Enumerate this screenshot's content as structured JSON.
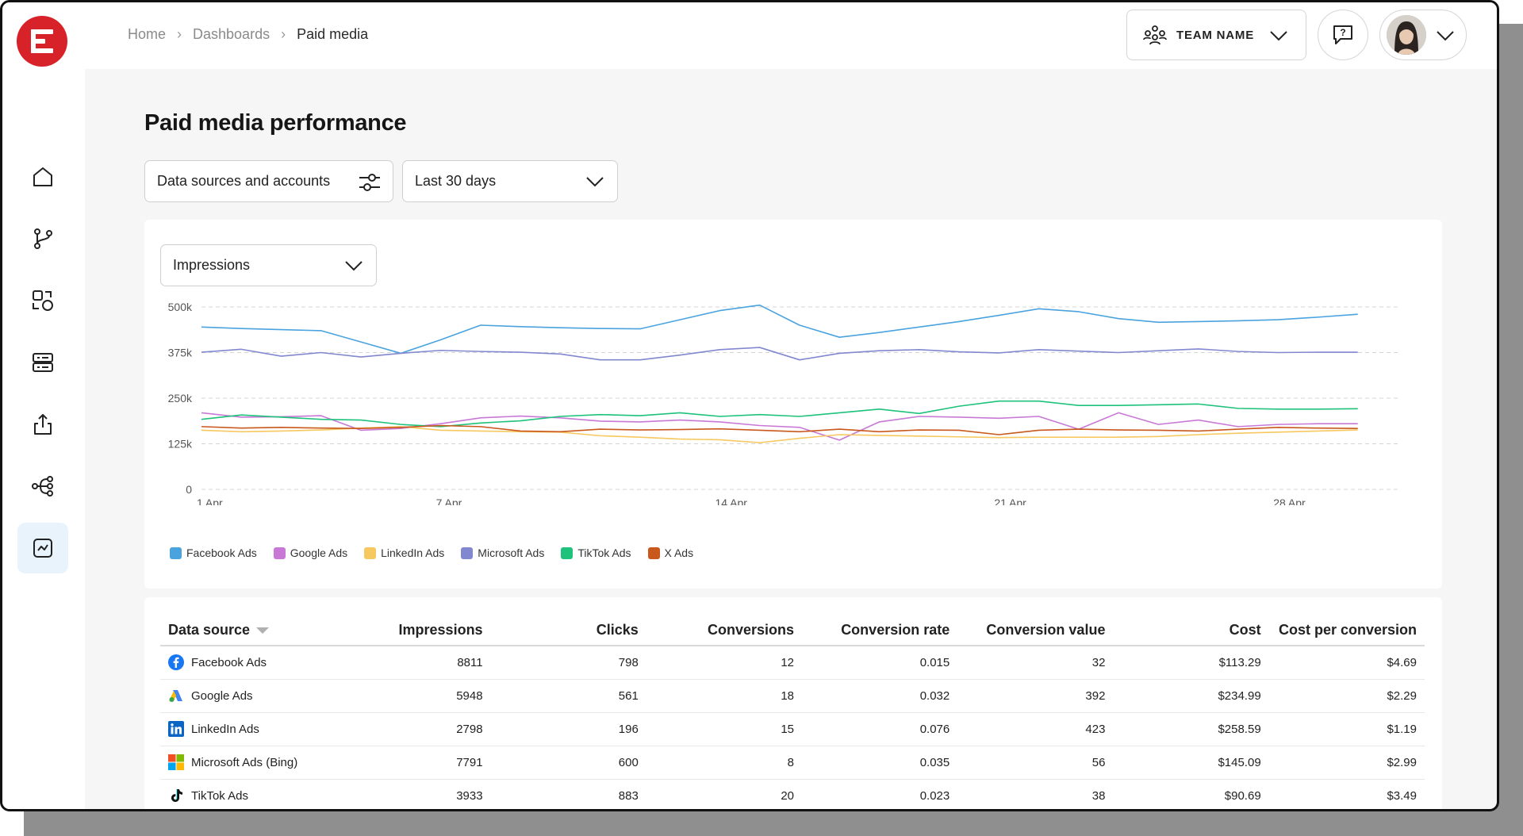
{
  "breadcrumb": {
    "home": "Home",
    "dashboards": "Dashboards",
    "current": "Paid media"
  },
  "header": {
    "team_name": "TEAM NAME"
  },
  "page": {
    "title": "Paid media performance"
  },
  "filters": {
    "sources_label": "Data sources and accounts",
    "date_range": "Last 30 days"
  },
  "chart": {
    "metric": "Impressions"
  },
  "colors": {
    "brand": "#d8222a",
    "active_nav_bg": "#e8f3fb"
  },
  "sidebar": {
    "items": [
      {
        "icon": "home-icon"
      },
      {
        "icon": "branch-icon"
      },
      {
        "icon": "shapes-icon"
      },
      {
        "icon": "server-icon"
      },
      {
        "icon": "upload-icon"
      },
      {
        "icon": "flow-icon"
      },
      {
        "icon": "analytics-icon",
        "active": true
      }
    ]
  },
  "chart_data": {
    "type": "line",
    "ylim": [
      0,
      500000
    ],
    "yticks": [
      "0",
      "125k",
      "250k",
      "375k",
      "500k"
    ],
    "xtick_labels": [
      "1 Apr",
      "7 Apr",
      "14 Apr",
      "21 Apr",
      "28 Apr"
    ],
    "xtick_days": [
      1,
      7,
      14,
      21,
      28
    ],
    "x": [
      1,
      2,
      3,
      4,
      5,
      6,
      7,
      8,
      9,
      10,
      11,
      12,
      13,
      14,
      15,
      16,
      17,
      18,
      19,
      20,
      21,
      22,
      23,
      24,
      25,
      26,
      27,
      28,
      29,
      30
    ],
    "grid": true,
    "legend_position": "bottom-left",
    "series": [
      {
        "name": "Facebook Ads",
        "color": "#4aa3df",
        "values": [
          445000,
          441000,
          438000,
          435000,
          404000,
          373000,
          410000,
          450000,
          446000,
          443000,
          441000,
          440000,
          465000,
          490000,
          505000,
          450000,
          417000,
          430000,
          445000,
          460000,
          477000,
          495000,
          487000,
          468000,
          458000,
          460000,
          462000,
          465000,
          472000,
          480000
        ]
      },
      {
        "name": "Google Ads",
        "color": "#c879d6",
        "values": [
          210000,
          198000,
          199000,
          202000,
          162000,
          167000,
          180000,
          196000,
          201000,
          196000,
          187000,
          185000,
          190000,
          185000,
          175000,
          170000,
          135000,
          185000,
          200000,
          198000,
          195000,
          200000,
          165000,
          210000,
          178000,
          190000,
          172000,
          178000,
          180000,
          180000
        ]
      },
      {
        "name": "LinkedIn Ads",
        "color": "#f6c85f",
        "values": [
          162000,
          158000,
          160000,
          163000,
          168000,
          172000,
          162000,
          160000,
          158000,
          157000,
          147000,
          143000,
          138000,
          136000,
          128000,
          140000,
          150000,
          148000,
          146000,
          144000,
          142000,
          143000,
          143000,
          143000,
          145000,
          150000,
          154000,
          157000,
          160000,
          163000
        ]
      },
      {
        "name": "Microsoft Ads",
        "color": "#8188cf",
        "values": [
          376000,
          384000,
          365000,
          375000,
          363000,
          373000,
          381000,
          378000,
          376000,
          371000,
          355000,
          355000,
          368000,
          383000,
          389000,
          355000,
          373000,
          380000,
          383000,
          377000,
          374000,
          383000,
          379000,
          375000,
          380000,
          385000,
          378000,
          375000,
          376000,
          376000
        ]
      },
      {
        "name": "TikTok Ads",
        "color": "#1ec27a",
        "values": [
          192000,
          204000,
          198000,
          192000,
          190000,
          178000,
          172000,
          182000,
          188000,
          200000,
          205000,
          202000,
          210000,
          200000,
          205000,
          200000,
          210000,
          220000,
          208000,
          228000,
          242000,
          242000,
          230000,
          230000,
          232000,
          234000,
          222000,
          220000,
          220000,
          221000
        ]
      },
      {
        "name": "X Ads",
        "color": "#c9581c",
        "values": [
          172000,
          168000,
          170000,
          168000,
          167000,
          170000,
          175000,
          172000,
          160000,
          158000,
          165000,
          163000,
          164000,
          166000,
          162000,
          158000,
          165000,
          158000,
          163000,
          162000,
          150000,
          162000,
          165000,
          163000,
          162000,
          160000,
          165000,
          170000,
          168000,
          167000
        ]
      }
    ]
  },
  "table": {
    "headers": [
      "Data source",
      "Impressions",
      "Clicks",
      "Conversions",
      "Conversion rate",
      "Conversion value",
      "Cost",
      "Cost per conversion"
    ],
    "rows": [
      {
        "icon": "facebook-icon",
        "cells": [
          "Facebook Ads",
          "8811",
          "798",
          "12",
          "0.015",
          "32",
          "$113.29",
          "$4.69"
        ]
      },
      {
        "icon": "google-ads-icon",
        "cells": [
          "Google Ads",
          "5948",
          "561",
          "18",
          "0.032",
          "392",
          "$234.99",
          "$2.29"
        ]
      },
      {
        "icon": "linkedin-icon",
        "cells": [
          "LinkedIn Ads",
          "2798",
          "196",
          "15",
          "0.076",
          "423",
          "$258.59",
          "$1.19"
        ]
      },
      {
        "icon": "microsoft-icon",
        "cells": [
          "Microsoft Ads (Bing)",
          "7791",
          "600",
          "8",
          "0.035",
          "56",
          "$145.09",
          "$2.99"
        ]
      },
      {
        "icon": "tiktok-icon",
        "cells": [
          "TikTok Ads",
          "3933",
          "883",
          "20",
          "0.023",
          "38",
          "$90.69",
          "$3.49"
        ]
      }
    ]
  }
}
